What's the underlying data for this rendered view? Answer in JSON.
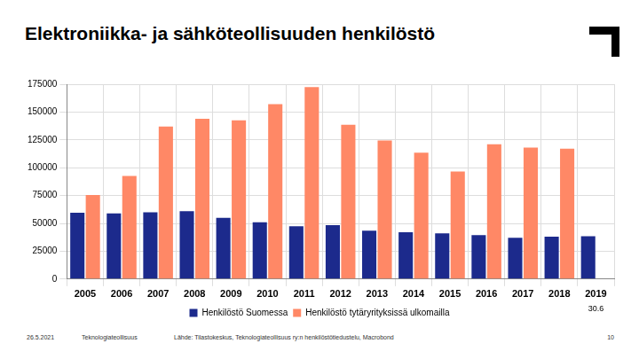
{
  "chart_data": {
    "type": "bar",
    "title": "Elektroniikka- ja sähköteollisuuden henkilöstö",
    "categories": [
      "2005",
      "2006",
      "2007",
      "2008",
      "2009",
      "2010",
      "2011",
      "2012",
      "2013",
      "2014",
      "2015",
      "2016",
      "2017",
      "2018",
      "2019"
    ],
    "series": [
      {
        "name": "Henkilöstö Suomessa",
        "color": "#1c2a8c",
        "values": [
          59500,
          59000,
          60000,
          61000,
          55000,
          51000,
          47500,
          48500,
          43500,
          42000,
          41000,
          39500,
          37000,
          38000,
          38500
        ]
      },
      {
        "name": "Henkilöstö tytäryrityksissä ulkomailla",
        "color": "#ff8866",
        "values": [
          75500,
          92500,
          137000,
          144000,
          142500,
          157000,
          172500,
          138500,
          124500,
          113500,
          96500,
          121000,
          118000,
          117000,
          null
        ]
      }
    ],
    "ylim": [
      0,
      175000
    ],
    "yticks": [
      0,
      25000,
      50000,
      75000,
      100000,
      125000,
      150000,
      175000
    ],
    "grid": true,
    "legend": "bottom",
    "annotations": [
      {
        "text": "30.6",
        "category": "2019"
      }
    ]
  },
  "footer": {
    "date": "26.5.2021",
    "organization": "Teknologiateollisuus",
    "source": "Lähde: Tilastokeskus, Teknologiateollisuus ry:n henkilöstötiedustelu, Macrobond",
    "page": "10"
  }
}
